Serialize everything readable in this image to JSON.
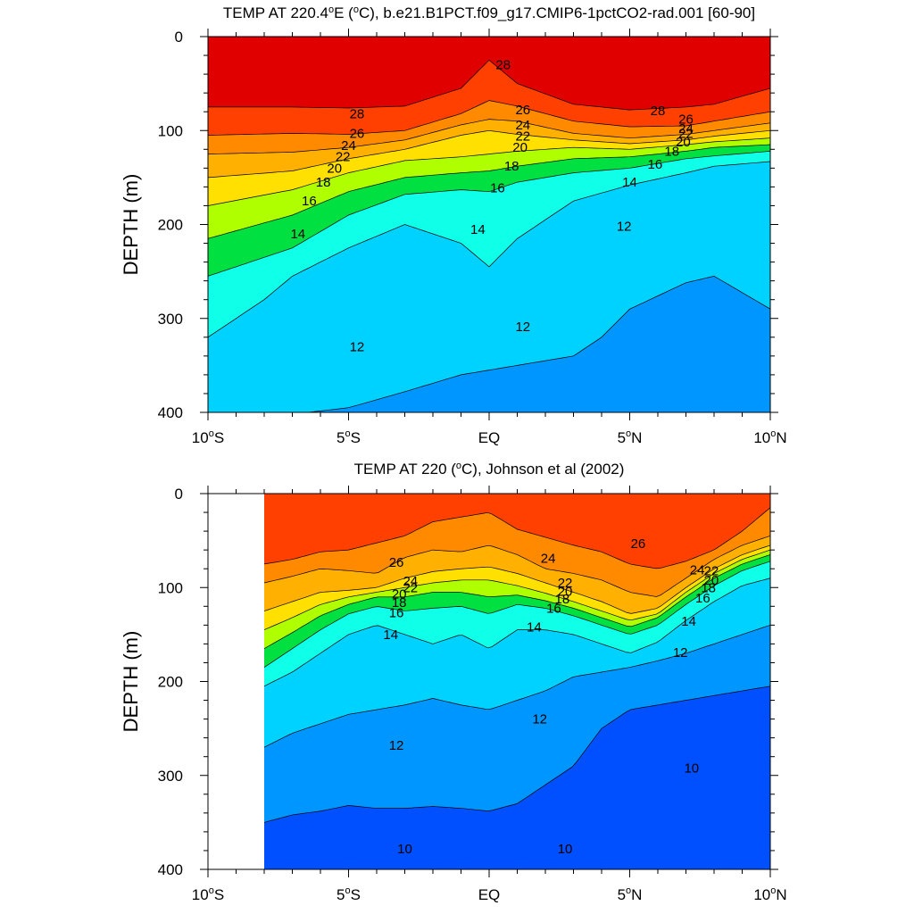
{
  "chart_data": [
    {
      "type": "contour",
      "title_parts": {
        "prefix": "TEMP AT 220.4",
        "deg": "o",
        "mid": "E (",
        "unit_sup": "o",
        "suffix": "C), b.e21.B1PCT.f09_g17.CMIP6-1pctCO2-rad.001 [60-90]"
      },
      "xlabel": "",
      "ylabel": "DEPTH (m)",
      "xlim": [
        -10,
        10
      ],
      "ylim": [
        400,
        0
      ],
      "data_xlim": [
        -10,
        10
      ],
      "x_ticks": [
        {
          "value": -10,
          "label": "10",
          "sup": "o",
          "suffix": "S"
        },
        {
          "value": -5,
          "label": "5",
          "sup": "o",
          "suffix": "S"
        },
        {
          "value": 0,
          "label": "EQ",
          "sup": "",
          "suffix": ""
        },
        {
          "value": 5,
          "label": "5",
          "sup": "o",
          "suffix": "N"
        },
        {
          "value": 10,
          "label": "10",
          "sup": "o",
          "suffix": "N"
        }
      ],
      "y_ticks": [
        0,
        100,
        200,
        300,
        400
      ],
      "isotherms": [
        {
          "level": 28,
          "x": [
            -10,
            -7,
            -5,
            -3,
            -1,
            0,
            1,
            3,
            5,
            7,
            8,
            10
          ],
          "depth": [
            75,
            75,
            76,
            74,
            55,
            25,
            50,
            72,
            78,
            75,
            72,
            55
          ]
        },
        {
          "level": 26,
          "x": [
            -10,
            -7,
            -5,
            -3,
            -1,
            0,
            1,
            3,
            5,
            7,
            8,
            10
          ],
          "depth": [
            105,
            103,
            104,
            100,
            82,
            68,
            74,
            90,
            96,
            95,
            90,
            80
          ]
        },
        {
          "level": 24,
          "x": [
            -10,
            -7,
            -5,
            -3,
            -1,
            0,
            1,
            3,
            5,
            7,
            8,
            10
          ],
          "depth": [
            125,
            123,
            118,
            110,
            94,
            88,
            90,
            103,
            108,
            104,
            100,
            92
          ]
        },
        {
          "level": 22,
          "x": [
            -10,
            -7,
            -5,
            -3,
            -1,
            0,
            1,
            3,
            5,
            7,
            8,
            10
          ],
          "depth": [
            150,
            143,
            130,
            120,
            105,
            100,
            104,
            110,
            114,
            110,
            106,
            100
          ]
        },
        {
          "level": 20,
          "x": [
            -10,
            -7,
            -5,
            -3,
            -1,
            0,
            1,
            3,
            5,
            7,
            8,
            10
          ],
          "depth": [
            180,
            163,
            145,
            132,
            128,
            125,
            122,
            118,
            120,
            115,
            112,
            108
          ]
        },
        {
          "level": 18,
          "x": [
            -10,
            -7,
            -5,
            -3,
            -1,
            0,
            1,
            3,
            5,
            7,
            8,
            10
          ],
          "depth": [
            215,
            190,
            165,
            150,
            145,
            143,
            138,
            130,
            128,
            122,
            118,
            115
          ]
        },
        {
          "level": 16,
          "x": [
            -10,
            -7,
            -5,
            -3,
            -1,
            0,
            1,
            3,
            5,
            7,
            8,
            10
          ],
          "depth": [
            255,
            225,
            190,
            168,
            163,
            165,
            155,
            145,
            140,
            130,
            127,
            122
          ]
        },
        {
          "level": 14,
          "x": [
            -10,
            -8,
            -7,
            -5,
            -3,
            -1,
            0,
            1,
            3,
            5,
            7,
            8,
            10
          ],
          "depth": [
            320,
            280,
            255,
            225,
            200,
            220,
            245,
            215,
            175,
            158,
            145,
            138,
            133
          ]
        },
        {
          "level": 12,
          "x": [
            -10,
            -7,
            -5,
            -3,
            -1,
            0,
            1,
            3,
            4,
            5,
            7,
            8,
            10
          ],
          "depth": [
            410,
            402,
            395,
            378,
            360,
            355,
            350,
            340,
            320,
            290,
            262,
            255,
            290
          ]
        }
      ],
      "contour_labels": [
        {
          "value": "28",
          "x": 0.5,
          "depth": 30
        },
        {
          "value": "28",
          "x": -4.7,
          "depth": 82
        },
        {
          "value": "28",
          "x": 6,
          "depth": 79
        },
        {
          "value": "26",
          "x": 1.2,
          "depth": 78
        },
        {
          "value": "26",
          "x": -4.7,
          "depth": 103
        },
        {
          "value": "26",
          "x": 7,
          "depth": 88
        },
        {
          "value": "24",
          "x": 1.2,
          "depth": 94
        },
        {
          "value": "24",
          "x": -5,
          "depth": 116
        },
        {
          "value": "24",
          "x": 7,
          "depth": 98
        },
        {
          "value": "22",
          "x": 1.2,
          "depth": 106
        },
        {
          "value": "22",
          "x": -5.2,
          "depth": 128
        },
        {
          "value": "22",
          "x": 7,
          "depth": 103
        },
        {
          "value": "20",
          "x": 1.1,
          "depth": 118
        },
        {
          "value": "20",
          "x": -5.5,
          "depth": 140
        },
        {
          "value": "20",
          "x": 6.9,
          "depth": 112
        },
        {
          "value": "18",
          "x": 0.8,
          "depth": 138
        },
        {
          "value": "18",
          "x": -5.9,
          "depth": 155
        },
        {
          "value": "18",
          "x": 6.5,
          "depth": 122
        },
        {
          "value": "16",
          "x": 0.3,
          "depth": 161
        },
        {
          "value": "16",
          "x": -6.4,
          "depth": 175
        },
        {
          "value": "16",
          "x": 5.9,
          "depth": 136
        },
        {
          "value": "14",
          "x": -0.4,
          "depth": 205
        },
        {
          "value": "14",
          "x": -6.8,
          "depth": 210
        },
        {
          "value": "14",
          "x": 5,
          "depth": 155
        },
        {
          "value": "12",
          "x": -4.7,
          "depth": 330
        },
        {
          "value": "12",
          "x": 1.2,
          "depth": 309
        },
        {
          "value": "12",
          "x": 4.8,
          "depth": 202
        }
      ]
    },
    {
      "type": "contour",
      "title_parts": {
        "prefix": "TEMP AT 220 (",
        "deg": "",
        "mid": "",
        "unit_sup": "o",
        "suffix": "C), Johnson et al (2002)"
      },
      "xlabel": "",
      "ylabel": "DEPTH (m)",
      "xlim": [
        -10,
        10
      ],
      "ylim": [
        400,
        0
      ],
      "data_xlim": [
        -8,
        10
      ],
      "x_ticks": [
        {
          "value": -10,
          "label": "10",
          "sup": "o",
          "suffix": "S"
        },
        {
          "value": -5,
          "label": "5",
          "sup": "o",
          "suffix": "S"
        },
        {
          "value": 0,
          "label": "EQ",
          "sup": "",
          "suffix": ""
        },
        {
          "value": 5,
          "label": "5",
          "sup": "o",
          "suffix": "N"
        },
        {
          "value": 10,
          "label": "10",
          "sup": "o",
          "suffix": "N"
        }
      ],
      "y_ticks": [
        0,
        100,
        200,
        300,
        400
      ],
      "isotherms": [
        {
          "level": 26,
          "x": [
            -8,
            -7,
            -6,
            -5,
            -3,
            -2,
            -1,
            0,
            1,
            3,
            4,
            5,
            6,
            7,
            8,
            9,
            10
          ],
          "depth": [
            75,
            70,
            62,
            60,
            45,
            30,
            25,
            20,
            38,
            55,
            62,
            75,
            80,
            72,
            60,
            40,
            15
          ]
        },
        {
          "level": 24,
          "x": [
            -8,
            -7,
            -6,
            -5,
            -4,
            -3,
            -2,
            -1,
            0,
            1,
            2,
            3,
            4,
            5,
            6,
            7,
            8,
            9,
            10
          ],
          "depth": [
            95,
            88,
            80,
            82,
            85,
            68,
            60,
            62,
            55,
            65,
            80,
            85,
            92,
            105,
            110,
            90,
            70,
            55,
            45
          ]
        },
        {
          "level": 22,
          "x": [
            -8,
            -7,
            -6,
            -5,
            -4,
            -3,
            -2,
            -1,
            0,
            1,
            2,
            3,
            4,
            5,
            6,
            7,
            8,
            9,
            10
          ],
          "depth": [
            125,
            115,
            105,
            103,
            100,
            90,
            83,
            80,
            78,
            85,
            95,
            105,
            115,
            128,
            122,
            100,
            80,
            65,
            55
          ]
        },
        {
          "level": 20,
          "x": [
            -8,
            -7,
            -6,
            -5,
            -4,
            -3,
            -2,
            -1,
            0,
            1,
            2,
            3,
            4,
            5,
            6,
            7,
            8,
            9,
            10
          ],
          "depth": [
            145,
            132,
            118,
            110,
            105,
            100,
            95,
            92,
            92,
            98,
            106,
            115,
            125,
            135,
            128,
            105,
            85,
            70,
            60
          ]
        },
        {
          "level": 18,
          "x": [
            -8,
            -7,
            -6,
            -5,
            -4,
            -3,
            -2,
            -1,
            0,
            1,
            2,
            3,
            4,
            5,
            6,
            7,
            8,
            9,
            10
          ],
          "depth": [
            165,
            148,
            130,
            118,
            110,
            110,
            105,
            105,
            110,
            108,
            114,
            122,
            132,
            142,
            132,
            110,
            90,
            75,
            65
          ]
        },
        {
          "level": 16,
          "x": [
            -8,
            -7,
            -6,
            -5,
            -4,
            -3,
            -2,
            -1,
            0,
            1,
            2,
            3,
            4,
            5,
            6,
            7,
            8,
            9,
            10
          ],
          "depth": [
            185,
            165,
            145,
            128,
            120,
            125,
            122,
            120,
            128,
            118,
            122,
            130,
            140,
            150,
            140,
            118,
            98,
            82,
            72
          ]
        },
        {
          "level": 14,
          "x": [
            -8,
            -7,
            -6,
            -5,
            -4,
            -3,
            -2,
            -1,
            0,
            1,
            2,
            3,
            4,
            5,
            6,
            7,
            8,
            9,
            10
          ],
          "depth": [
            205,
            190,
            170,
            150,
            140,
            150,
            160,
            150,
            165,
            145,
            145,
            150,
            160,
            170,
            158,
            135,
            115,
            98,
            90
          ]
        },
        {
          "level": 12,
          "x": [
            -8,
            -7,
            -6,
            -5,
            -4,
            -3,
            -2,
            -1,
            0,
            1,
            2,
            3,
            4,
            5,
            6,
            7,
            8,
            9,
            10
          ],
          "depth": [
            270,
            255,
            245,
            235,
            230,
            225,
            218,
            225,
            230,
            220,
            210,
            195,
            190,
            185,
            178,
            170,
            160,
            150,
            140
          ]
        },
        {
          "level": 10,
          "x": [
            -8,
            -7,
            -6,
            -5,
            -4,
            -3,
            -2,
            -1,
            0,
            1,
            2,
            3,
            4,
            5,
            6,
            7,
            8,
            9,
            10
          ],
          "depth": [
            350,
            342,
            338,
            332,
            335,
            335,
            333,
            335,
            338,
            330,
            310,
            290,
            250,
            230,
            225,
            220,
            215,
            210,
            205
          ]
        }
      ],
      "contour_labels": [
        {
          "value": "26",
          "x": -3.3,
          "depth": 73
        },
        {
          "value": "26",
          "x": 5.3,
          "depth": 53
        },
        {
          "value": "24",
          "x": 2.1,
          "depth": 69
        },
        {
          "value": "24",
          "x": -2.8,
          "depth": 93
        },
        {
          "value": "24",
          "x": 7.4,
          "depth": 81
        },
        {
          "value": "22",
          "x": 2.7,
          "depth": 95
        },
        {
          "value": "22",
          "x": -2.8,
          "depth": 100
        },
        {
          "value": "22",
          "x": 7.9,
          "depth": 82
        },
        {
          "value": "20",
          "x": 2.7,
          "depth": 104
        },
        {
          "value": "20",
          "x": -3.2,
          "depth": 107
        },
        {
          "value": "20",
          "x": 7.9,
          "depth": 92
        },
        {
          "value": "18",
          "x": 2.6,
          "depth": 112
        },
        {
          "value": "18",
          "x": -3.2,
          "depth": 116
        },
        {
          "value": "18",
          "x": 7.8,
          "depth": 100
        },
        {
          "value": "16",
          "x": 2.3,
          "depth": 122
        },
        {
          "value": "16",
          "x": -3.3,
          "depth": 127
        },
        {
          "value": "16",
          "x": 7.6,
          "depth": 111
        },
        {
          "value": "14",
          "x": 1.6,
          "depth": 142
        },
        {
          "value": "14",
          "x": -3.5,
          "depth": 150
        },
        {
          "value": "14",
          "x": 7.1,
          "depth": 136
        },
        {
          "value": "12",
          "x": 1.8,
          "depth": 240
        },
        {
          "value": "12",
          "x": -3.3,
          "depth": 268
        },
        {
          "value": "12",
          "x": 6.8,
          "depth": 169
        },
        {
          "value": "10",
          "x": -3,
          "depth": 378
        },
        {
          "value": "10",
          "x": 2.7,
          "depth": 378
        },
        {
          "value": "10",
          "x": 7.2,
          "depth": 292
        }
      ]
    }
  ],
  "colormap": {
    "9": "#0050ff",
    "10": "#0070ff",
    "11": "#0096ff",
    "12": "#00b4ff",
    "13": "#00d2ff",
    "14": "#00eaff",
    "15": "#10ffe8",
    "16": "#00f0a0",
    "17": "#00e040",
    "18": "#30ff00",
    "19": "#b0ff00",
    "20": "#ffff00",
    "21": "#ffe000",
    "22": "#ffcc00",
    "23": "#ffb000",
    "24": "#ff9820",
    "25": "#ff8a00",
    "26": "#ff6a00",
    "27": "#ff4000",
    "28": "#ff1a00",
    "29": "#e00000"
  }
}
